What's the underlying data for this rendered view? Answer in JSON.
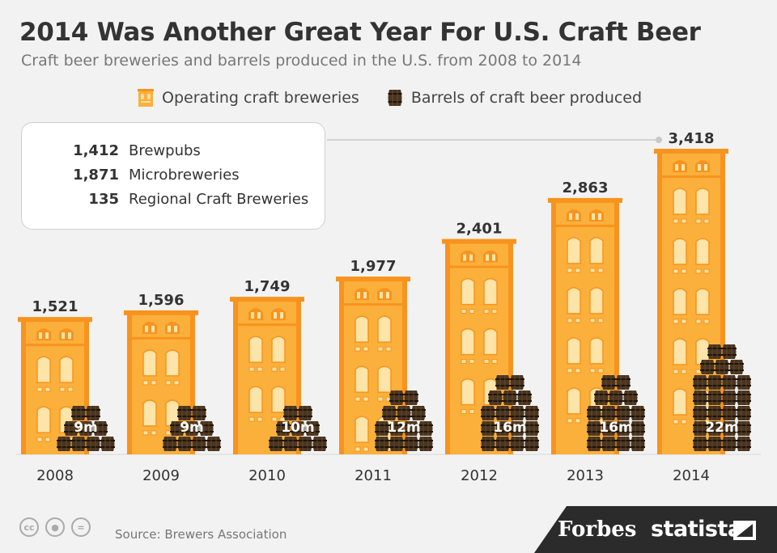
{
  "header": {
    "title": "2014 Was Another Great Year For U.S. Craft Beer",
    "subtitle": "Craft beer breweries and barrels produced in the U.S. from 2008 to 2014"
  },
  "legend": {
    "breweries_label": "Operating craft breweries",
    "barrels_label": "Barrels of craft beer produced"
  },
  "callout": {
    "rows": [
      {
        "value": "1,412",
        "label": "Brewpubs"
      },
      {
        "value": "1,871",
        "label": "Microbreweries"
      },
      {
        "value": "135",
        "label": "Regional Craft Breweries"
      }
    ]
  },
  "chart_data": {
    "type": "bar",
    "categories": [
      "2008",
      "2009",
      "2010",
      "2011",
      "2012",
      "2013",
      "2014"
    ],
    "series": [
      {
        "name": "Operating craft breweries",
        "values": [
          1521,
          1596,
          1749,
          1977,
          2401,
          2863,
          3418
        ]
      },
      {
        "name": "Barrels of craft beer produced",
        "values": [
          9,
          9,
          10,
          12,
          16,
          16,
          22
        ]
      }
    ],
    "value_labels": [
      "1,521",
      "1,596",
      "1,749",
      "1,977",
      "2,401",
      "2,863",
      "3,418"
    ],
    "barrel_labels": [
      "9m",
      "9m",
      "10m",
      "12m",
      "16m",
      "16m",
      "22m"
    ],
    "colors": {
      "building": "#fbb03b",
      "building_dark": "#f7931e",
      "window": "#fde4a8",
      "barrel": "#4a3520",
      "barrel_band": "#1e140a"
    }
  },
  "footer": {
    "source": "Source: Brewers Association",
    "license_icons": [
      "cc-icon",
      "by-icon",
      "nd-icon"
    ],
    "brand_forbes": "Forbes",
    "brand_statista": "statista"
  }
}
